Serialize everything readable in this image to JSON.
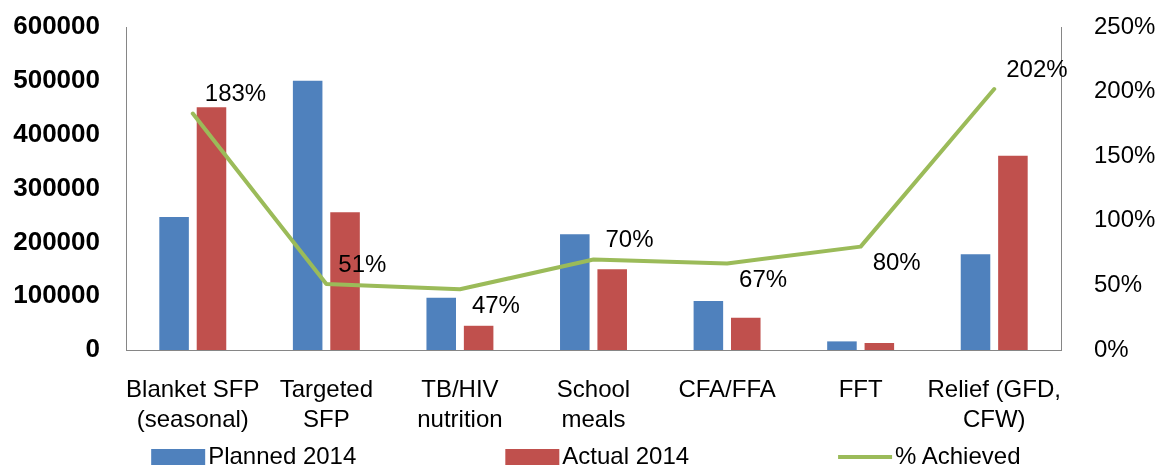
{
  "chart_data": {
    "type": "bar",
    "categories": [
      "Blanket SFP (seasonal)",
      "Targeted SFP",
      "TB/HIV nutrition",
      "School meals",
      "CFA/FFA",
      "FFT",
      "Relief (GFD, CFW)"
    ],
    "series": [
      {
        "name": "Planned 2014",
        "color": "#4f81bd",
        "values": [
          247000,
          500000,
          97000,
          215000,
          91000,
          16000,
          178000
        ]
      },
      {
        "name": "Actual 2014",
        "color": "#c0504d",
        "values": [
          451000,
          256000,
          45000,
          150000,
          60000,
          13000,
          361000
        ]
      },
      {
        "name": "% Achieved",
        "type": "line",
        "axis": "y2",
        "color": "#9bbb59",
        "values": [
          183,
          51,
          47,
          70,
          67,
          80,
          202
        ],
        "value_labels": [
          "183%",
          "51%",
          "47%",
          "70%",
          "67%",
          "80%",
          "202%"
        ]
      }
    ],
    "ylim": [
      0,
      600000
    ],
    "yticks": [
      0,
      100000,
      200000,
      300000,
      400000,
      500000,
      600000
    ],
    "y2lim": [
      0,
      250
    ],
    "y2ticks": [
      {
        "value": 0,
        "label": "0%"
      },
      {
        "value": 50,
        "label": "50%"
      },
      {
        "value": 100,
        "label": "100%"
      },
      {
        "value": 150,
        "label": "150%"
      },
      {
        "value": 200,
        "label": "200%"
      },
      {
        "value": 250,
        "label": "250%"
      }
    ],
    "grid": false,
    "legend": "bottom"
  }
}
